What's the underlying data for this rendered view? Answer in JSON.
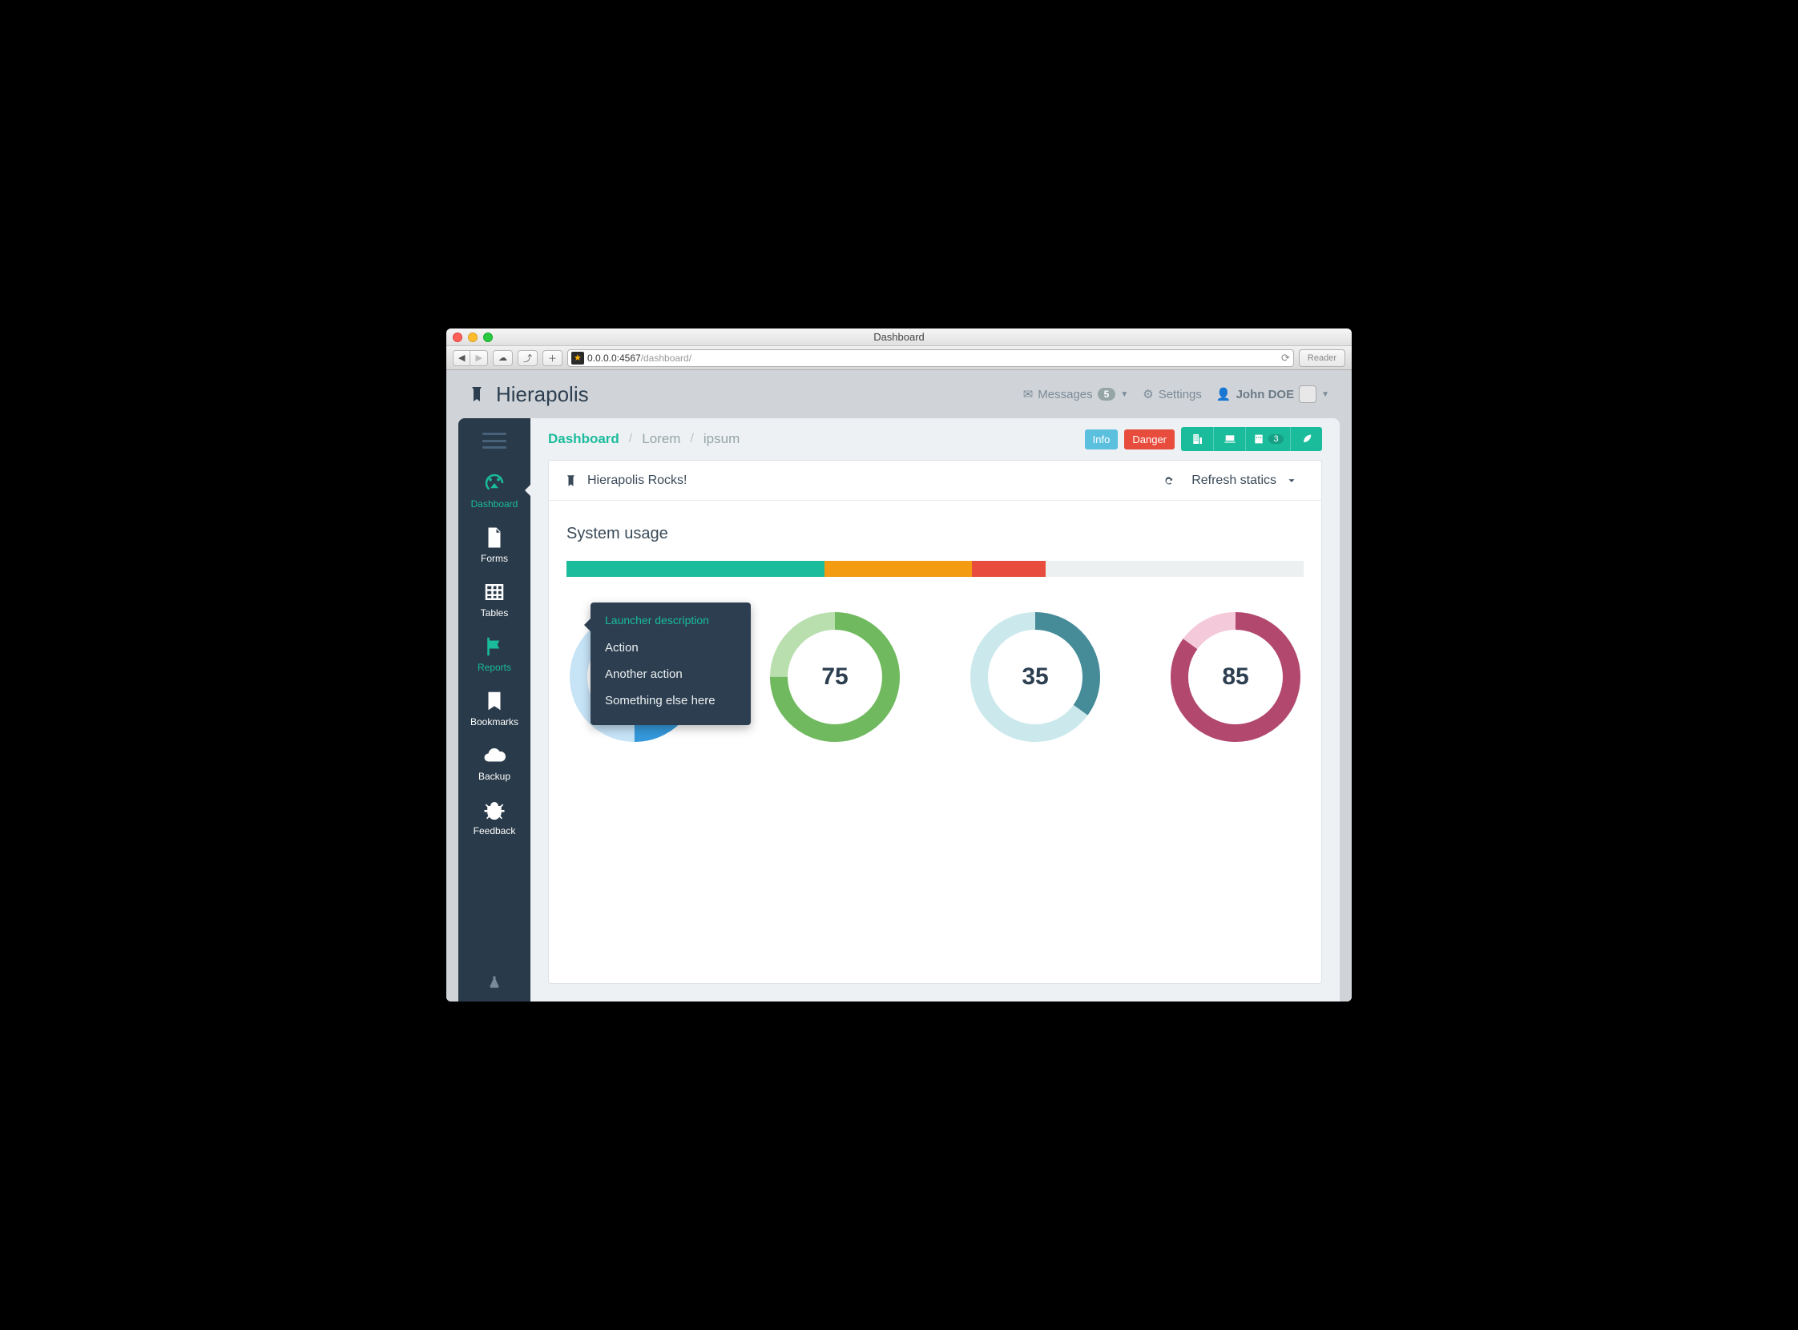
{
  "window": {
    "title": "Dashboard",
    "url_host": "0.0.0.0:4567",
    "url_path": "/dashboard/",
    "reader_label": "Reader"
  },
  "brand": {
    "name": "Hierapolis"
  },
  "topnav": {
    "messages": {
      "label": "Messages",
      "count": "5"
    },
    "settings": {
      "label": "Settings"
    },
    "user": {
      "label": "John DOE"
    }
  },
  "sidebar": {
    "items": [
      {
        "label": "Dashboard"
      },
      {
        "label": "Forms"
      },
      {
        "label": "Tables"
      },
      {
        "label": "Reports"
      },
      {
        "label": "Bookmarks"
      },
      {
        "label": "Backup"
      },
      {
        "label": "Feedback"
      }
    ]
  },
  "breadcrumb": {
    "a": "Dashboard",
    "b": "Lorem",
    "c": "ipsum"
  },
  "actions": {
    "info": "Info",
    "danger": "Danger",
    "calendar_count": "3"
  },
  "panel": {
    "title": "Hierapolis Rocks!",
    "refresh": "Refresh statics"
  },
  "section": {
    "title": "System usage"
  },
  "progress": {
    "segments": [
      {
        "color": "#1abc9c",
        "width": 35
      },
      {
        "color": "#f39c12",
        "width": 20
      },
      {
        "color": "#e74c3c",
        "width": 10
      }
    ],
    "track_color": "#ecf0f1"
  },
  "donuts": [
    {
      "value": 50,
      "fg": "#3498db",
      "bg": "#c7e4f7",
      "thickness": 22
    },
    {
      "value": 75,
      "fg": "#70b95f",
      "bg": "#b9dfae",
      "thickness": 22
    },
    {
      "value": 35,
      "fg": "#468c98",
      "bg": "#cbe9ec",
      "thickness": 22
    },
    {
      "value": 85,
      "fg": "#b2486e",
      "bg": "#f4c9d9",
      "thickness": 22
    }
  ],
  "popover": {
    "head": "Launcher description",
    "items": [
      "Action",
      "Another action",
      "Something else here"
    ]
  },
  "colors": {
    "sidebar_bg": "#293a4a",
    "accent": "#1abc9c",
    "main_bg": "#eef1f4",
    "viewport_bg": "#d0d4d8",
    "text_dark": "#2c3e50"
  }
}
